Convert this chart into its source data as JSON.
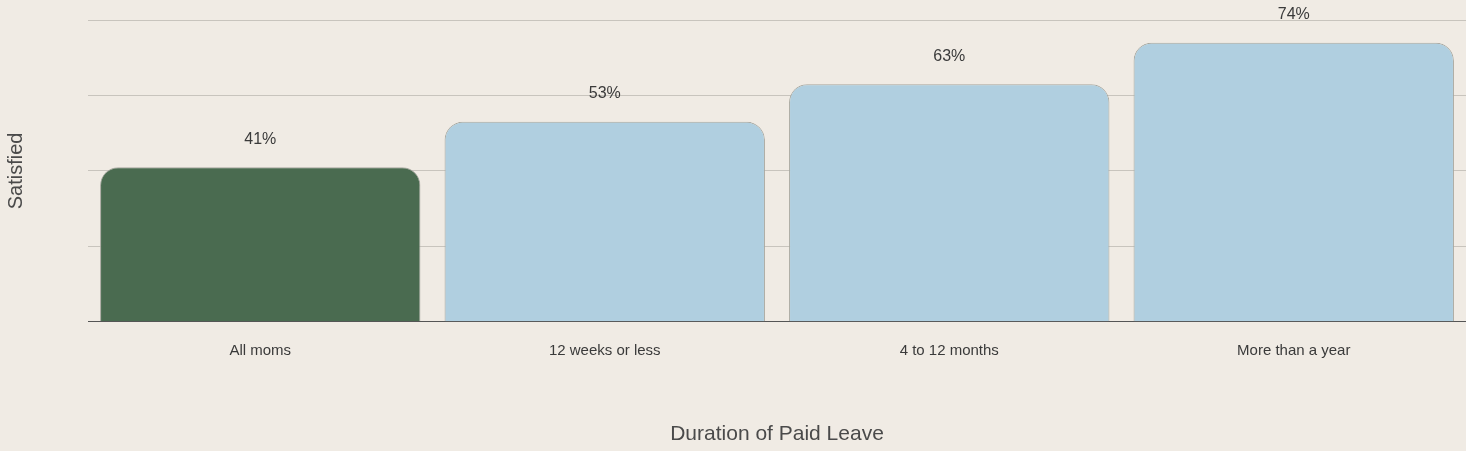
{
  "chart_data": {
    "type": "bar",
    "xlabel": "Duration of Paid Leave",
    "ylabel": "Satisfied",
    "categories": [
      "All moms",
      "12 weeks or less",
      "4 to 12 months",
      "More than a year"
    ],
    "values": [
      41,
      53,
      63,
      74
    ],
    "colors": [
      "#4a6b50",
      "#b0cfe0",
      "#b0cfe0",
      "#b0cfe0"
    ],
    "value_labels": [
      "41%",
      "53%",
      "63%",
      "74%"
    ],
    "ylim": [
      0,
      80
    ],
    "grid": "y",
    "tick_labels": "x",
    "legend": false
  }
}
